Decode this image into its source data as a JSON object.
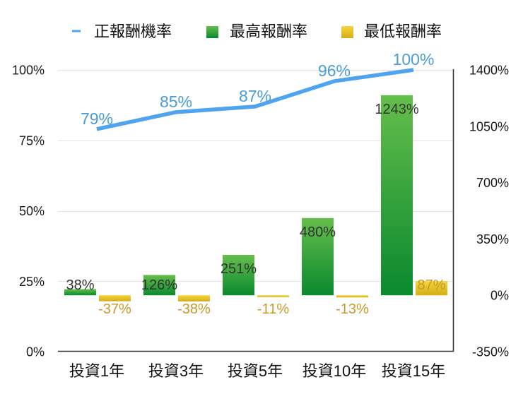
{
  "chart_data": {
    "type": "bar+line",
    "title": "",
    "xlabel": "",
    "ylabel": "",
    "grid": true,
    "legend_position": "top",
    "categories": [
      "投資1年",
      "投資3年",
      "投資5年",
      "投資10年",
      "投資15年"
    ],
    "series": [
      {
        "name": "正報酬機率",
        "type": "line",
        "axis": "left",
        "values": [
          79,
          85,
          87,
          96,
          100
        ],
        "labels": [
          "79%",
          "85%",
          "87%",
          "96%",
          "100%"
        ],
        "color": "#4ea4ef",
        "label_color": "#4a9dd4"
      },
      {
        "name": "最高報酬率",
        "type": "bar",
        "axis": "right",
        "values": [
          38,
          126,
          251,
          480,
          1243
        ],
        "labels": [
          "38%",
          "126%",
          "251%",
          "480%",
          "1243%"
        ],
        "color": "#1e9a38",
        "gradient": [
          "#64be4a",
          "#0a892f"
        ],
        "label_color": "#333333"
      },
      {
        "name": "最低報酬率",
        "type": "bar",
        "axis": "right",
        "values": [
          -37,
          -38,
          -11,
          -13,
          87
        ],
        "labels": [
          "-37%",
          "-38%",
          "-11%",
          "-13%",
          "87%"
        ],
        "color": "#e8c420",
        "gradient": [
          "#f3d63c",
          "#d6ad17"
        ],
        "label_color": "#c9992a"
      }
    ],
    "left_axis": {
      "range": [
        0,
        100
      ],
      "ticks": [
        0,
        25,
        50,
        75,
        100
      ],
      "tick_labels": [
        "0%",
        "25%",
        "50%",
        "75%",
        "100%"
      ]
    },
    "right_axis": {
      "range": [
        -350,
        1400
      ],
      "ticks": [
        -350,
        0,
        350,
        700,
        1050,
        1400
      ],
      "tick_labels": [
        "-350%",
        "0%",
        "350%",
        "700%",
        "1050%",
        "1400%"
      ]
    }
  },
  "colors": {
    "gridline": "#e3e3e3",
    "axis": "#333333",
    "text": "#111111"
  }
}
